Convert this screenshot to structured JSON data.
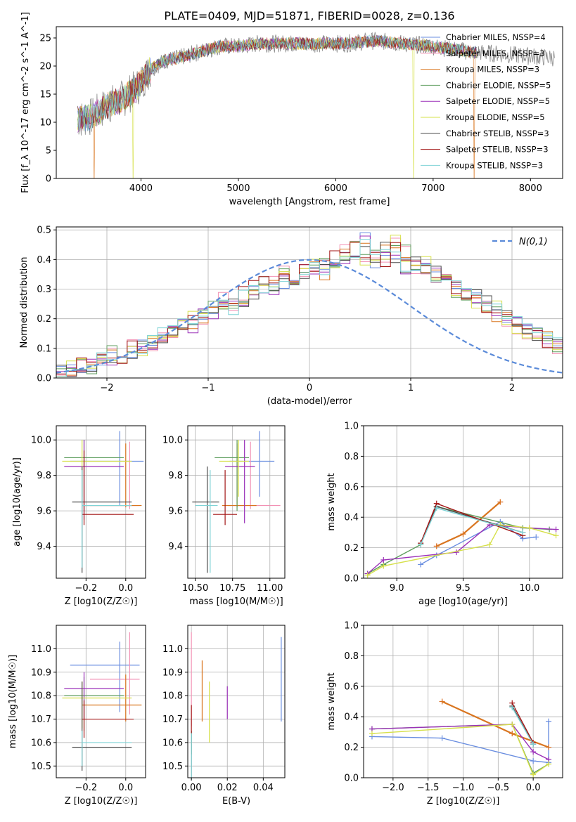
{
  "title": "PLATE=0409, MJD=51871, FIBERID=0028, z=0.136",
  "model_names": [
    "Chabrier MILES, N<sub>SSP</sub>=4",
    "Salpeter MILES, N<sub>SSP</sub>=3",
    "Kroupa MILES, N<sub>SSP</sub>=3",
    "Chabrier ELODIE, N<sub>SSP</sub>=5",
    "Salpeter ELODIE, N<sub>SSP</sub>=5",
    "Kroupa ELODIE, N<sub>SSP</sub>=5",
    "Chabrier STELIB, N<sub>SSP</sub>=3",
    "Salpeter STELIB, N<sub>SSP</sub>=3",
    "Kroupa STELIB, N<sub>SSP</sub>=3"
  ],
  "model_legend": [
    "Chabrier MILES, NSSP=4",
    "Salpeter MILES, NSSP=3",
    "Kroupa MILES, NSSP=3",
    "Chabrier ELODIE, NSSP=5",
    "Salpeter ELODIE, NSSP=5",
    "Kroupa ELODIE, NSSP=5",
    "Chabrier STELIB, NSSP=3",
    "Salpeter STELIB, NSSP=3",
    "Kroupa STELIB, NSSP=3"
  ],
  "colors": {
    "models": [
      "#6a8ee0",
      "#f291b4",
      "#d9751f",
      "#5f9e5f",
      "#9b30b8",
      "#d6e04a",
      "#4a4a4a",
      "#a31616",
      "#7fd3d6"
    ],
    "data_spectrum": "#888888",
    "gaussian": "#5b8bd9",
    "grid": "#b0b0b0"
  },
  "chart_data": [
    {
      "type": "line",
      "panel": "spectrum",
      "title": "PLATE=0409, MJD=51871, FIBERID=0028, z=0.136",
      "xlabel": "wavelength [Angstrom, rest frame]",
      "ylabel": "Flux [f_λ 10^-17 erg cm^-2 s^-1 A^-1]",
      "xlim": [
        3130,
        8330
      ],
      "ylim": [
        0,
        27
      ],
      "xticks": [
        4000,
        5000,
        6000,
        7000,
        8000
      ],
      "yticks": [
        0,
        5,
        10,
        15,
        20,
        25
      ],
      "grid": false,
      "legend": "right",
      "continuum": {
        "x": [
          3350,
          3500,
          3650,
          3800,
          3950,
          4100,
          4250,
          4400,
          4600,
          4800,
          5000,
          5200,
          5500,
          5800,
          6100,
          6400,
          6700,
          7000,
          7400,
          7800,
          8200
        ],
        "y": [
          10.5,
          11,
          13,
          14,
          16,
          19.5,
          21,
          21.5,
          22.5,
          23.5,
          23.5,
          24,
          24,
          24,
          24,
          24.5,
          24,
          23.5,
          22.5,
          22,
          21.5
        ]
      },
      "model_x_range": [
        3350,
        7450
      ],
      "data_x_range": [
        3350,
        8250
      ],
      "model_dropouts": [
        {
          "x": 3520,
          "model": 2
        },
        {
          "x": 3920,
          "model": 5
        },
        {
          "x": 6800,
          "model": 5
        },
        {
          "x": 7420,
          "model": 2
        }
      ]
    },
    {
      "type": "histogram",
      "panel": "residuals",
      "xlabel": "(data-model)/error",
      "ylabel": "Normed distribution",
      "xlim": [
        -2.5,
        2.5
      ],
      "ylim": [
        0,
        0.51
      ],
      "xticks": [
        -2,
        -1,
        0,
        1,
        2
      ],
      "yticks": [
        0.0,
        0.1,
        0.2,
        0.3,
        0.4,
        0.5
      ],
      "grid": true,
      "legend": "top-right",
      "gaussian_label": "N(0,1)",
      "bin_width": 0.1,
      "bin_start": -2.5,
      "series_values": [
        [
          0.03,
          0.02,
          0.03,
          0.05,
          0.06,
          0.07,
          0.09,
          0.08,
          0.11,
          0.12,
          0.14,
          0.15,
          0.17,
          0.18,
          0.21,
          0.22,
          0.25,
          0.24,
          0.27,
          0.29,
          0.31,
          0.3,
          0.33,
          0.34,
          0.36,
          0.37,
          0.36,
          0.38,
          0.41,
          0.42,
          0.47,
          0.4,
          0.44,
          0.41,
          0.38,
          0.39,
          0.37,
          0.35,
          0.32,
          0.31,
          0.28,
          0.27,
          0.25,
          0.22,
          0.2,
          0.18,
          0.16,
          0.15,
          0.13,
          0.11,
          0.1
        ],
        [
          0.02,
          0.03,
          0.04,
          0.04,
          0.06,
          0.08,
          0.07,
          0.1,
          0.1,
          0.12,
          0.15,
          0.16,
          0.18,
          0.2,
          0.2,
          0.23,
          0.26,
          0.25,
          0.28,
          0.3,
          0.32,
          0.32,
          0.35,
          0.34,
          0.37,
          0.38,
          0.39,
          0.4,
          0.43,
          0.44,
          0.39,
          0.42,
          0.4,
          0.46,
          0.42,
          0.37,
          0.38,
          0.34,
          0.33,
          0.3,
          0.29,
          0.26,
          0.24,
          0.23,
          0.2,
          0.17,
          0.16,
          0.14,
          0.12,
          0.11,
          0.09
        ]
      ]
    },
    {
      "type": "errorbar",
      "panel": "age_vs_Z",
      "xlabel": "Z [log10(Z/Z☉)]",
      "ylabel": "age [log10(age/yr)]",
      "xlim": [
        -0.35,
        0.1
      ],
      "ylim": [
        9.22,
        10.08
      ],
      "xticks": [
        -0.2,
        0.0
      ],
      "yticks": [
        9.4,
        9.6,
        9.8,
        10.0
      ],
      "grid": true,
      "points": [
        {
          "x": -0.03,
          "y": 9.88,
          "xerr": [
            0.25,
            0.12
          ],
          "yerr": [
            0.25,
            0.17
          ]
        },
        {
          "x": 0.02,
          "y": 9.63,
          "xerr": [
            0.2,
            0.05
          ],
          "yerr": [
            0.02,
            0.36
          ]
        },
        {
          "x": 0.0,
          "y": 9.63,
          "xerr": [
            0.22,
            0.08
          ],
          "yerr": [
            0.01,
            0.35
          ]
        },
        {
          "x": -0.21,
          "y": 9.9,
          "xerr": [
            0.1,
            0.2
          ],
          "yerr": [
            0.3,
            0.1
          ]
        },
        {
          "x": -0.21,
          "y": 9.85,
          "xerr": [
            0.1,
            0.2
          ],
          "yerr": [
            0.3,
            0.15
          ]
        },
        {
          "x": -0.22,
          "y": 9.88,
          "xerr": [
            0.1,
            0.25
          ],
          "yerr": [
            0.2,
            0.12
          ]
        },
        {
          "x": -0.22,
          "y": 9.65,
          "xerr": [
            0.05,
            0.25
          ],
          "yerr": [
            0.4,
            0.2
          ]
        },
        {
          "x": -0.21,
          "y": 9.58,
          "xerr": [
            0.01,
            0.25
          ],
          "yerr": [
            0.06,
            0.36
          ]
        },
        {
          "x": -0.22,
          "y": 9.63,
          "xerr": [
            0.0,
            0.25
          ],
          "yerr": [
            0.35,
            0.2
          ]
        }
      ]
    },
    {
      "type": "errorbar",
      "panel": "age_vs_mass",
      "xlabel": "mass [log10(M/M☉)]",
      "ylabel": "",
      "xlim": [
        10.45,
        11.1
      ],
      "ylim": [
        9.22,
        10.08
      ],
      "xticks": [
        10.5,
        10.75,
        11.0
      ],
      "yticks": [
        9.4,
        9.6,
        9.8,
        10.0
      ],
      "grid": true,
      "points": [
        {
          "x": 10.93,
          "y": 9.88,
          "xerr": [
            0.2,
            0.1
          ],
          "yerr": [
            0.2,
            0.17
          ]
        },
        {
          "x": 10.87,
          "y": 9.63,
          "xerr": [
            0.15,
            0.2
          ],
          "yerr": [
            0.02,
            0.36
          ]
        },
        {
          "x": 10.78,
          "y": 9.63,
          "xerr": [
            0.1,
            0.13
          ],
          "yerr": [
            0.01,
            0.35
          ]
        },
        {
          "x": 10.78,
          "y": 9.9,
          "xerr": [
            0.15,
            0.08
          ],
          "yerr": [
            0.3,
            0.1
          ]
        },
        {
          "x": 10.83,
          "y": 9.85,
          "xerr": [
            0.13,
            0.07
          ],
          "yerr": [
            0.32,
            0.15
          ]
        },
        {
          "x": 10.79,
          "y": 9.88,
          "xerr": [
            0.13,
            0.07
          ],
          "yerr": [
            0.2,
            0.12
          ]
        },
        {
          "x": 10.58,
          "y": 9.65,
          "xerr": [
            0.1,
            0.08
          ],
          "yerr": [
            0.4,
            0.2
          ]
        },
        {
          "x": 10.7,
          "y": 9.58,
          "xerr": [
            0.08,
            0.08
          ],
          "yerr": [
            0.06,
            0.25
          ]
        },
        {
          "x": 10.6,
          "y": 9.63,
          "xerr": [
            0.1,
            0.05
          ],
          "yerr": [
            0.38,
            0.2
          ]
        }
      ]
    },
    {
      "type": "line",
      "panel": "weight_vs_age",
      "xlabel": "age [log10(age/yr)]",
      "ylabel": "mass weight",
      "xlim": [
        8.75,
        10.25
      ],
      "ylim": [
        0,
        1
      ],
      "xticks": [
        9.0,
        9.5,
        10.0
      ],
      "yticks": [
        0.0,
        0.2,
        0.4,
        0.6,
        0.8,
        1.0
      ],
      "grid": true,
      "series": [
        {
          "x": [
            9.18,
            9.3,
            9.78,
            9.95,
            10.05
          ],
          "y": [
            0.09,
            0.15,
            0.37,
            0.26,
            0.27
          ]
        },
        {
          "x": [
            9.3,
            9.5,
            9.78
          ],
          "y": [
            0.21,
            0.29,
            0.5
          ]
        },
        {
          "x": [
            9.3,
            9.5,
            9.78
          ],
          "y": [
            0.21,
            0.29,
            0.5
          ]
        },
        {
          "x": [
            8.78,
            8.9,
            9.18,
            9.3,
            9.95,
            10.15
          ],
          "y": [
            0.03,
            0.09,
            0.22,
            0.47,
            0.33,
            0.32
          ]
        },
        {
          "x": [
            8.78,
            8.9,
            9.45,
            9.7,
            10.0,
            10.2
          ],
          "y": [
            0.03,
            0.12,
            0.17,
            0.35,
            0.33,
            0.32
          ]
        },
        {
          "x": [
            8.78,
            8.9,
            9.7,
            9.78,
            10.0,
            10.2
          ],
          "y": [
            0.02,
            0.08,
            0.22,
            0.35,
            0.33,
            0.28
          ]
        },
        {
          "x": [
            9.18,
            9.3,
            9.95
          ],
          "y": [
            0.23,
            0.47,
            0.3
          ]
        },
        {
          "x": [
            9.18,
            9.3,
            9.95
          ],
          "y": [
            0.23,
            0.49,
            0.28
          ]
        },
        {
          "x": [
            9.18,
            9.3,
            9.95
          ],
          "y": [
            0.22,
            0.46,
            0.3
          ]
        }
      ]
    },
    {
      "type": "errorbar",
      "panel": "mass_vs_Z",
      "xlabel": "Z [log10(Z/Z☉)]",
      "ylabel": "mass [log10(M/M☉)]",
      "xlim": [
        -0.35,
        0.1
      ],
      "ylim": [
        10.45,
        11.1
      ],
      "xticks": [
        -0.2,
        0.0
      ],
      "yticks": [
        10.5,
        10.6,
        10.7,
        10.8,
        10.9,
        11.0
      ],
      "grid": true,
      "points": [
        {
          "x": -0.03,
          "y": 10.93,
          "xerr": [
            0.25,
            0.1
          ],
          "yerr": [
            0.2,
            0.1
          ]
        },
        {
          "x": 0.02,
          "y": 10.87,
          "xerr": [
            0.2,
            0.05
          ],
          "yerr": [
            0.15,
            0.2
          ]
        },
        {
          "x": 0.0,
          "y": 10.76,
          "xerr": [
            0.22,
            0.08
          ],
          "yerr": [
            0.07,
            0.13
          ]
        },
        {
          "x": -0.21,
          "y": 10.8,
          "xerr": [
            0.1,
            0.2
          ],
          "yerr": [
            0.15,
            0.08
          ]
        },
        {
          "x": -0.21,
          "y": 10.83,
          "xerr": [
            0.1,
            0.2
          ],
          "yerr": [
            0.13,
            0.07
          ]
        },
        {
          "x": -0.22,
          "y": 10.79,
          "xerr": [
            0.1,
            0.25
          ],
          "yerr": [
            0.13,
            0.07
          ]
        },
        {
          "x": -0.22,
          "y": 10.58,
          "xerr": [
            0.05,
            0.25
          ],
          "yerr": [
            0.1,
            0.28
          ]
        },
        {
          "x": -0.21,
          "y": 10.7,
          "xerr": [
            0.01,
            0.25
          ],
          "yerr": [
            0.08,
            0.08
          ]
        },
        {
          "x": -0.22,
          "y": 10.6,
          "xerr": [
            0.0,
            0.25
          ],
          "yerr": [
            0.1,
            0.05
          ]
        }
      ]
    },
    {
      "type": "errorbar",
      "panel": "mass_vs_ebv",
      "xlabel": "E(B-V)",
      "ylabel": "",
      "xlim": [
        -0.002,
        0.052
      ],
      "ylim": [
        10.45,
        11.1
      ],
      "xticks": [
        0.0,
        0.02,
        0.04
      ],
      "yticks": [
        10.5,
        10.6,
        10.7,
        10.8,
        10.9,
        11.0
      ],
      "grid": true,
      "points": [
        {
          "x": 0.05,
          "y": 10.87,
          "yerr": [
            0.18,
            0.18
          ]
        },
        {
          "x": 0.0,
          "y": 10.87,
          "yerr": [
            0.2,
            0.2
          ]
        },
        {
          "x": 0.006,
          "y": 10.82,
          "yerr": [
            0.13,
            0.13
          ]
        },
        {
          "x": 0.0,
          "y": 10.6,
          "yerr": [
            0.05,
            0.05
          ]
        },
        {
          "x": 0.02,
          "y": 10.77,
          "yerr": [
            0.07,
            0.07
          ]
        },
        {
          "x": 0.01,
          "y": 10.73,
          "yerr": [
            0.13,
            0.13
          ]
        },
        {
          "x": 0.0,
          "y": 10.55,
          "yerr": [
            0.1,
            0.1
          ]
        },
        {
          "x": 0.0,
          "y": 10.7,
          "yerr": [
            0.06,
            0.06
          ]
        },
        {
          "x": 0.0,
          "y": 10.54,
          "yerr": [
            0.1,
            0.1
          ]
        }
      ]
    },
    {
      "type": "line",
      "panel": "weight_vs_Z",
      "xlabel": "Z [log10(Z/Z☉)]",
      "ylabel": "mass weight",
      "xlim": [
        -2.42,
        0.42
      ],
      "ylim": [
        0,
        1
      ],
      "xticks": [
        -2.0,
        -1.5,
        -1.0,
        -0.5,
        0.0
      ],
      "yticks": [
        0.0,
        0.2,
        0.4,
        0.6,
        0.8,
        1.0
      ],
      "grid": true,
      "series": [
        {
          "x": [
            -2.3,
            -1.3,
            0.0,
            0.22,
            0.22
          ],
          "y": [
            0.27,
            0.26,
            0.11,
            0.1,
            0.37
          ]
        },
        {
          "x": [
            -1.3,
            -0.3,
            0.22
          ],
          "y": [
            0.5,
            0.29,
            0.2
          ]
        },
        {
          "x": [
            -1.3,
            -0.3,
            0.22
          ],
          "y": [
            0.5,
            0.29,
            0.2
          ]
        },
        {
          "x": [
            -2.3,
            -0.3,
            0.0,
            0.22
          ],
          "y": [
            0.32,
            0.35,
            0.03,
            0.09
          ]
        },
        {
          "x": [
            -2.3,
            -0.3,
            0.0,
            0.22
          ],
          "y": [
            0.32,
            0.35,
            0.17,
            0.12
          ]
        },
        {
          "x": [
            -2.3,
            -0.3,
            0.0,
            0.22
          ],
          "y": [
            0.29,
            0.35,
            0.02,
            0.09
          ]
        },
        {
          "x": [
            -0.3,
            0.0
          ],
          "y": [
            0.47,
            0.22
          ]
        },
        {
          "x": [
            -0.3,
            0.0
          ],
          "y": [
            0.49,
            0.23
          ]
        },
        {
          "x": [
            -0.3,
            0.0
          ],
          "y": [
            0.46,
            0.22
          ]
        }
      ]
    }
  ]
}
